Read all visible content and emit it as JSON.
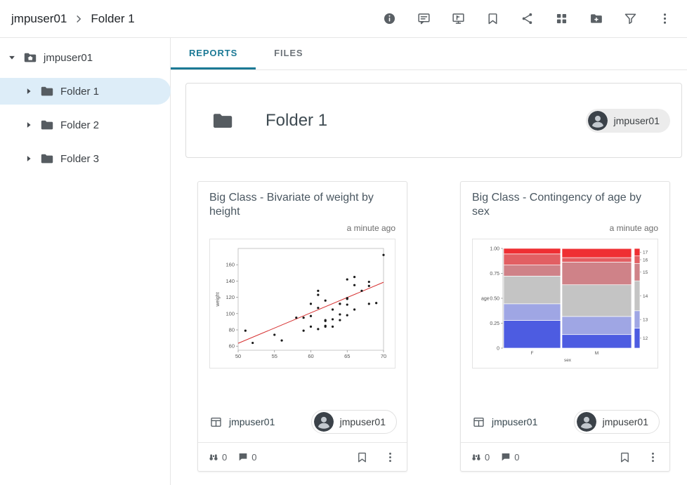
{
  "header": {
    "breadcrumb": {
      "root": "jmpuser01",
      "current": "Folder 1"
    },
    "icons": [
      "info",
      "comments",
      "presentation",
      "bookmark",
      "share",
      "apps-grid",
      "add-folder",
      "filter",
      "more"
    ]
  },
  "sidebar": {
    "root_label": "jmpuser01",
    "items": [
      {
        "label": "Folder 1",
        "selected": true
      },
      {
        "label": "Folder 2",
        "selected": false
      },
      {
        "label": "Folder 3",
        "selected": false
      }
    ]
  },
  "tabs": {
    "reports": "REPORTS",
    "files": "FILES",
    "active": "REPORTS"
  },
  "folder_panel": {
    "title": "Folder 1",
    "owner_chip": "jmpuser01"
  },
  "cards": [
    {
      "title": "Big Class - Bivariate of weight by height",
      "timestamp": "a minute ago",
      "data_source": "jmpuser01",
      "owner_chip": "jmpuser01",
      "views_count": "0",
      "comments_count": "0"
    },
    {
      "title": "Big Class - Contingency of age by sex",
      "timestamp": "a minute ago",
      "data_source": "jmpuser01",
      "owner_chip": "jmpuser01",
      "views_count": "0",
      "comments_count": "0"
    }
  ],
  "colors": {
    "tab_accent": "#1b7995",
    "selected_tree_bg": "#ddedf8",
    "fit_line_red": "#d62f2f"
  },
  "chart_data": [
    {
      "type": "scatter",
      "title": "Big Class - Bivariate of weight by height",
      "xlabel": "",
      "ylabel": "weight",
      "xlim": [
        50,
        70
      ],
      "ylim": [
        55,
        180
      ],
      "xticks": [
        50,
        55,
        60,
        65,
        70
      ],
      "yticks": [
        60,
        80,
        100,
        120,
        140,
        160
      ],
      "points": [
        [
          59,
          95
        ],
        [
          61,
          123
        ],
        [
          55,
          74
        ],
        [
          66,
          145
        ],
        [
          52,
          64
        ],
        [
          60,
          84
        ],
        [
          61,
          128
        ],
        [
          51,
          79
        ],
        [
          60,
          112
        ],
        [
          61,
          107
        ],
        [
          56,
          67
        ],
        [
          65,
          98
        ],
        [
          63,
          105
        ],
        [
          58,
          95
        ],
        [
          59,
          79
        ],
        [
          61,
          81
        ],
        [
          62,
          91
        ],
        [
          65,
          142
        ],
        [
          63,
          84
        ],
        [
          62,
          85
        ],
        [
          63,
          93
        ],
        [
          64,
          99
        ],
        [
          65,
          119
        ],
        [
          64,
          92
        ],
        [
          68,
          112
        ],
        [
          64,
          112
        ],
        [
          69,
          113
        ],
        [
          62,
          92
        ],
        [
          64,
          112
        ],
        [
          65,
          118
        ],
        [
          66,
          105
        ],
        [
          62,
          116
        ],
        [
          66,
          135
        ],
        [
          65,
          111
        ],
        [
          60,
          97
        ],
        [
          68,
          139
        ],
        [
          62,
          84
        ],
        [
          68,
          134
        ],
        [
          70,
          172
        ],
        [
          67,
          128
        ]
      ],
      "fit_line": {
        "slope": 3.75,
        "intercept": -124,
        "color": "#d62f2f"
      },
      "point_color": "#1a1a1a",
      "grid": false
    },
    {
      "type": "mosaic",
      "title": "Big Class - Contingency of age by sex",
      "xlabel": "sex",
      "ylabel": "age",
      "yticks": [
        0,
        0.25,
        0.5,
        0.75,
        1.0
      ],
      "ytick_labels": [
        "0",
        "0.25",
        "0.50",
        "0.75",
        "1.00"
      ],
      "categories": [
        "F",
        "M"
      ],
      "category_widths": [
        0.45,
        0.55
      ],
      "levels": [
        "12",
        "13",
        "14",
        "15",
        "16",
        "17"
      ],
      "level_colors": [
        "#4d5ce1",
        "#9fa6e4",
        "#c4c4c4",
        "#cf8288",
        "#e25f63",
        "#ef2f33"
      ],
      "series": [
        {
          "name": "F",
          "proportions": [
            0.278,
            0.167,
            0.278,
            0.111,
            0.111,
            0.056
          ]
        },
        {
          "name": "M",
          "proportions": [
            0.136,
            0.182,
            0.318,
            0.227,
            0.045,
            0.091
          ]
        }
      ],
      "totals": [
        0.2,
        0.175,
        0.3,
        0.175,
        0.075,
        0.075
      ],
      "right_axis_labels_top_to_bottom": [
        "17",
        "16",
        "15",
        "14",
        "13",
        "12"
      ],
      "legend_position": "right"
    }
  ]
}
